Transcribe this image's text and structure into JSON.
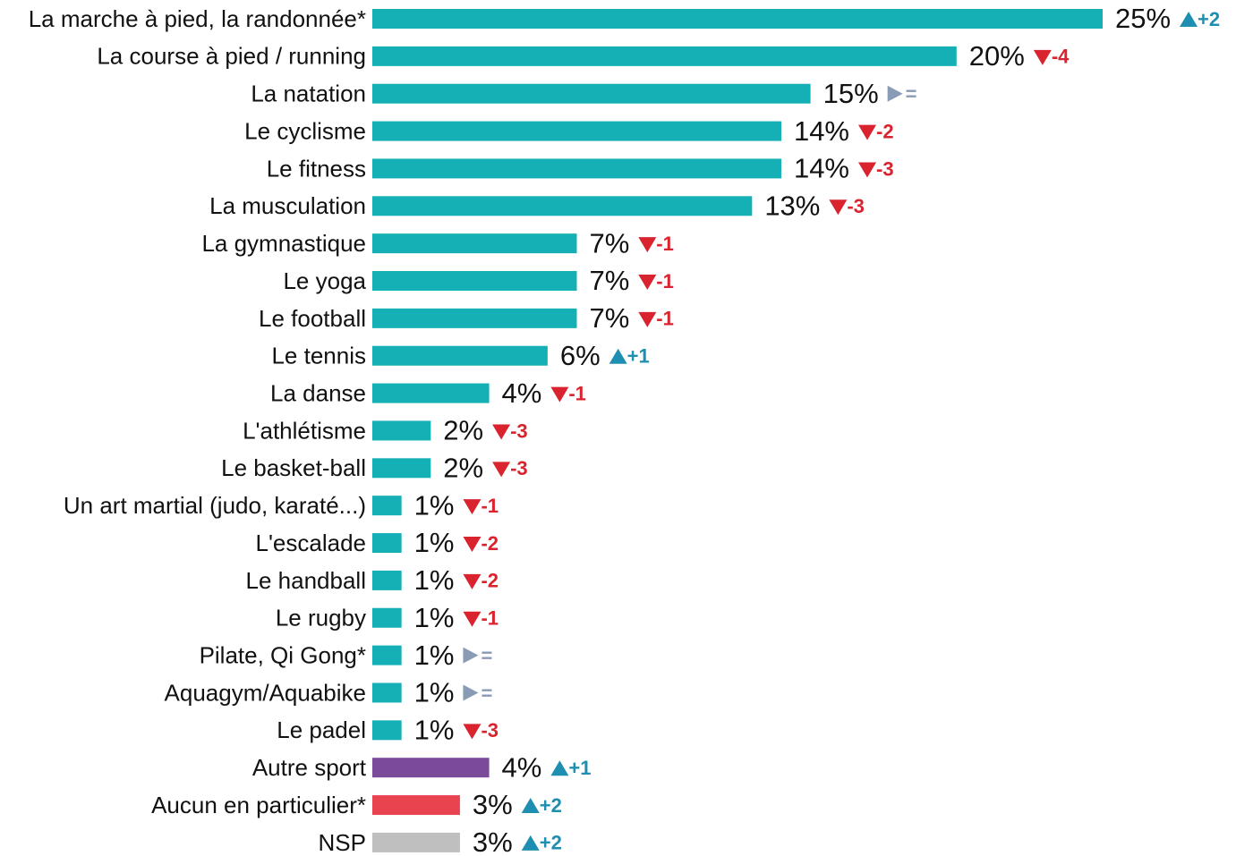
{
  "chart_data": {
    "type": "bar",
    "orientation": "horizontal",
    "categories": [
      "La marche à pied, la randonnée*",
      "La course à pied / running",
      "La natation",
      "Le cyclisme",
      "Le fitness",
      "La musculation",
      "La gymnastique",
      "Le yoga",
      "Le football",
      "Le tennis",
      "La danse",
      "L'athlétisme",
      "Le basket-ball",
      "Un art martial (judo, karaté...)",
      "L'escalade",
      "Le handball",
      "Le rugby",
      "Pilate, Qi Gong*",
      "Aquagym/Aquabike",
      "Le padel",
      "Autre sport",
      "Aucun en particulier*",
      "NSP"
    ],
    "values": [
      25,
      20,
      15,
      14,
      14,
      13,
      7,
      7,
      7,
      6,
      4,
      2,
      2,
      1,
      1,
      1,
      1,
      1,
      1,
      1,
      4,
      3,
      3
    ],
    "value_labels": [
      "25%",
      "20%",
      "15%",
      "14%",
      "14%",
      "13%",
      "7%",
      "7%",
      "7%",
      "6%",
      "4%",
      "2%",
      "2%",
      "1%",
      "1%",
      "1%",
      "1%",
      "1%",
      "1%",
      "1%",
      "4%",
      "3%",
      "3%"
    ],
    "changes": [
      "+2",
      "-4",
      "=",
      "-2",
      "-3",
      "-3",
      "-1",
      "-1",
      "-1",
      "+1",
      "-1",
      "-3",
      "-3",
      "-1",
      "-2",
      "-2",
      "-1",
      "=",
      "=",
      "-3",
      "+1",
      "+2",
      "+2"
    ],
    "colors": [
      "#14b0b5",
      "#14b0b5",
      "#14b0b5",
      "#14b0b5",
      "#14b0b5",
      "#14b0b5",
      "#14b0b5",
      "#14b0b5",
      "#14b0b5",
      "#14b0b5",
      "#14b0b5",
      "#14b0b5",
      "#14b0b5",
      "#14b0b5",
      "#14b0b5",
      "#14b0b5",
      "#14b0b5",
      "#14b0b5",
      "#14b0b5",
      "#14b0b5",
      "#7b4a9a",
      "#e8434f",
      "#bfbfbf"
    ],
    "change_colors": {
      "up": "#1e8fb0",
      "down": "#d9232e",
      "flat": "#8a9bb5"
    }
  }
}
